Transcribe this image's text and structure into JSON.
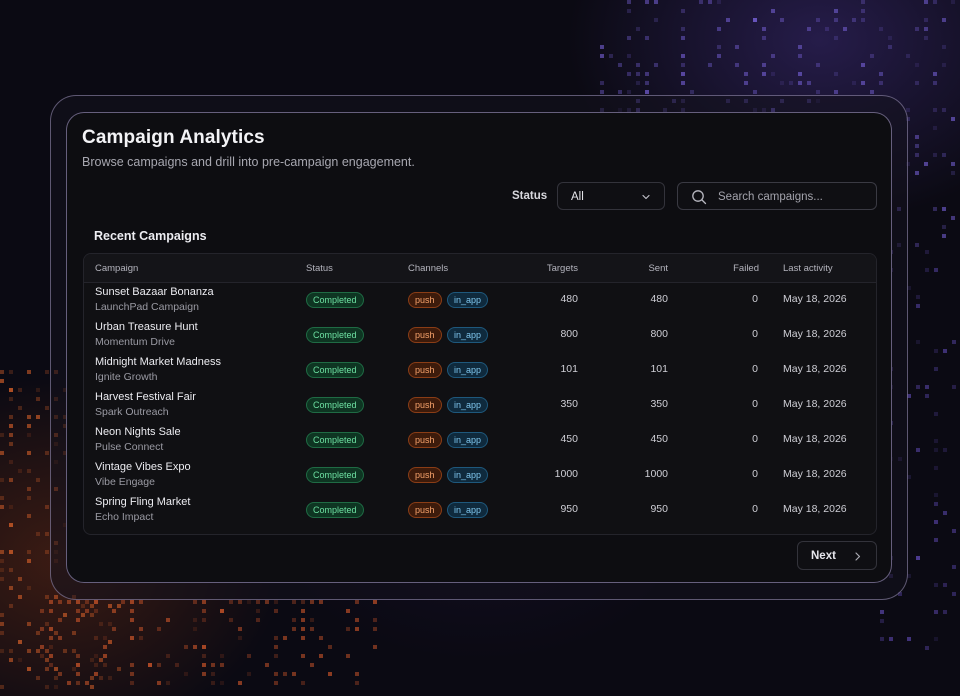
{
  "header": {
    "title": "Campaign Analytics",
    "subtitle": "Browse campaigns and drill into pre-campaign engagement."
  },
  "filters": {
    "status_label": "Status",
    "status_value": "All",
    "search_placeholder": "Search campaigns..."
  },
  "section": {
    "title": "Recent Campaigns"
  },
  "table": {
    "columns": [
      "Campaign",
      "Status",
      "Channels",
      "Targets",
      "Sent",
      "Failed",
      "Last activity"
    ],
    "rows": [
      {
        "name": "Sunset Bazaar Bonanza",
        "sub": "LaunchPad Campaign",
        "status": "Completed",
        "channels": [
          "push",
          "in_app"
        ],
        "targets": "480",
        "sent": "480",
        "failed": "0",
        "last_activity": "May 18, 2026"
      },
      {
        "name": "Urban Treasure Hunt",
        "sub": "Momentum Drive",
        "status": "Completed",
        "channels": [
          "push",
          "in_app"
        ],
        "targets": "800",
        "sent": "800",
        "failed": "0",
        "last_activity": "May 18, 2026"
      },
      {
        "name": "Midnight Market Madness",
        "sub": "Ignite Growth",
        "status": "Completed",
        "channels": [
          "push",
          "in_app"
        ],
        "targets": "101",
        "sent": "101",
        "failed": "0",
        "last_activity": "May 18, 2026"
      },
      {
        "name": "Harvest Festival Fair",
        "sub": "Spark Outreach",
        "status": "Completed",
        "channels": [
          "push",
          "in_app"
        ],
        "targets": "350",
        "sent": "350",
        "failed": "0",
        "last_activity": "May 18, 2026"
      },
      {
        "name": "Neon Nights Sale",
        "sub": "Pulse Connect",
        "status": "Completed",
        "channels": [
          "push",
          "in_app"
        ],
        "targets": "450",
        "sent": "450",
        "failed": "0",
        "last_activity": "May 18, 2026"
      },
      {
        "name": "Vintage Vibes Expo",
        "sub": "Vibe Engage",
        "status": "Completed",
        "channels": [
          "push",
          "in_app"
        ],
        "targets": "1000",
        "sent": "1000",
        "failed": "0",
        "last_activity": "May 18, 2026"
      },
      {
        "name": "Spring Fling Market",
        "sub": "Echo Impact",
        "status": "Completed",
        "channels": [
          "push",
          "in_app"
        ],
        "targets": "950",
        "sent": "950",
        "failed": "0",
        "last_activity": "May 18, 2026"
      }
    ]
  },
  "pagination": {
    "next_label": "Next"
  },
  "icons": {
    "status_dropdown": "chevron-down-icon",
    "search": "search-icon",
    "next": "chevron-right-icon"
  },
  "colors": {
    "completed": "#6ee2a3",
    "push": "#f7a36c",
    "in_app": "#7fc6ee"
  }
}
